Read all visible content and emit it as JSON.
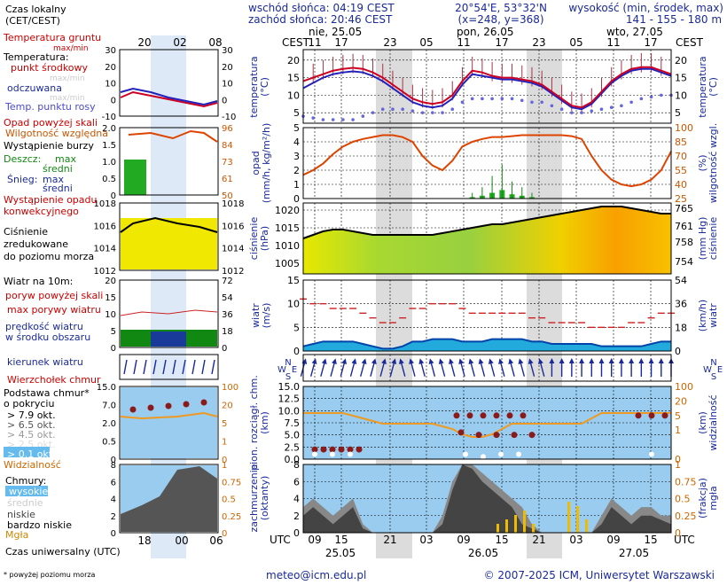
{
  "header": {
    "sunrise": "wschód słońca: 04:19 CEST",
    "sunset": "zachód słońca: 20:46 CEST",
    "coords": "20°54'E, 53°32'N",
    "grid": "(x=248, y=368)",
    "elev_label": "wysokość (min, środek, max)",
    "elev_values": "141 - 155 - 180 m"
  },
  "legend": {
    "timezone": "Czas lokalny\n(CET/CEST)",
    "local_ticks": [
      "20",
      "02",
      "08"
    ],
    "utc_ticks": [
      "18",
      "00",
      "06"
    ],
    "utc_label": "Czas uniwersalny (UTC)",
    "footnote": "* powyżej poziomu morza",
    "temp_ground": "Temperatura gruntu",
    "temp_ground_sub": "max/min",
    "temp_title": "Temperatura:",
    "temp_mid": "punkt środkowy",
    "temp_range": "max/min",
    "temp_felt": "odczuwana",
    "temp_felt_range": "max/min",
    "temp_dew": "Temp. punktu rosy",
    "precip_above": "Opad powyżej skali",
    "humidity": "Wilgotność względna",
    "storm": "Wystąpienie burzy",
    "rain": "Deszcz:",
    "rain_max": "max",
    "rain_mean": "średni",
    "snow": "Śnieg:",
    "snow_max": "max",
    "snow_mean": "średni",
    "conv": "Wystąpienie opadu\nkonwekcyjnego",
    "pressure": "Ciśnienie\nzredukowane\ndo poziomu morza",
    "wind_title": "Wiatr na 10m:",
    "gust_above": "poryw powyżej skali",
    "gust_max": "max porywy wiatru",
    "wind_speed": "prędkość wiatru\nw środku obszaru",
    "wind_dir": "kierunek wiatru",
    "cloud_top": "Wierzchołek chmur",
    "cloud_base": "Podstawa chmur*\no pokryciu",
    "okt": [
      "> 7.9 okt.",
      "> 6.5 okt.",
      "> 4.5 okt.",
      "> 2.5 okt.",
      "> 0.1 okt."
    ],
    "visibility": "Widzialność",
    "clouds": "Chmury:",
    "cl_high": "wysokie",
    "cl_mid": "średnie",
    "cl_low": "niskie",
    "cl_vlow": "bardzo niskie",
    "fog": "Mgła"
  },
  "axes": {
    "cest": "CEST",
    "utc": "UTC",
    "day_labels": [
      "nie, 25.05",
      "pon, 26.05",
      "wto, 27.05"
    ],
    "bottom_dates": [
      "25.05",
      "26.05",
      "27.05"
    ],
    "top_hours": [
      "11",
      "17",
      "23",
      "05",
      "11",
      "17",
      "23",
      "05",
      "11",
      "17"
    ],
    "bottom_hours": [
      "09",
      "15",
      "21",
      "03",
      "09",
      "15",
      "21",
      "03",
      "09",
      "15"
    ],
    "temp_left": "temperatura\n(°C)",
    "temp_right": "temperatura\n(°C)",
    "precip_left": "opad\n(mm/h, kg/m²/h)",
    "precip_right": "(%)\nwilgotność wzgl.",
    "press_left": "ciśnienie\n(hPa)",
    "press_right": "(mm Hg)\nciśnienie",
    "wind_left": "wiatr\n(m/s)",
    "wind_right": "(km/h)\nwiatr",
    "cloud_left": "pion. rozciągł. chm.\n(km)",
    "cloud_right": "(km)\nwidzialność",
    "fog_left": "zachmurzenie\n(oktanty)",
    "fog_right": "(frakcja)\nmgła",
    "compass": [
      "N",
      "W",
      "E",
      "S"
    ],
    "temp_ticks_l": [
      "20",
      "15",
      "10",
      "5"
    ],
    "temp_ticks_r": [
      "20",
      "15",
      "10",
      "5"
    ],
    "precip_ticks_l": [
      "5",
      "4",
      "3",
      "2",
      "1",
      "0"
    ],
    "precip_ticks_r": [
      "100",
      "85",
      "70",
      "55",
      "40",
      "25"
    ],
    "press_ticks_l": [
      "1020",
      "1015",
      "1010",
      "1005"
    ],
    "press_ticks_r": [
      "765",
      "761",
      "758",
      "754"
    ],
    "wind_ticks_l": [
      "15",
      "10",
      "5",
      "0"
    ],
    "wind_ticks_r": [
      "54",
      "36",
      "18",
      "0"
    ],
    "cloud_ticks_l": [
      "15.0",
      "12.5",
      "10.0",
      "7.5",
      "5.0",
      "2.5",
      "0.0"
    ],
    "cloud_ticks_r": [
      "100",
      "20",
      "5",
      "1",
      "0"
    ],
    "fog_ticks_l": [
      "8",
      "6",
      "4",
      "2",
      "0"
    ],
    "fog_ticks_r": [
      "1",
      "0.75",
      "0.5",
      "0.25",
      "0"
    ],
    "leg_temp_l": [
      "30",
      "20",
      "10",
      "0",
      "-10"
    ],
    "leg_temp_r": [
      "30",
      "20",
      "10",
      "0",
      "-10"
    ],
    "leg_prec_l": [
      "2.0",
      "1.5",
      "1.0",
      "0.5",
      "0"
    ],
    "leg_prec_r": [
      "96",
      "84",
      "73",
      "61",
      "50"
    ],
    "leg_press_l": [
      "1018",
      "1016",
      "1014",
      "1012"
    ],
    "leg_press_r": [
      "1018",
      "1016",
      "1014",
      "1012"
    ],
    "leg_wind_l": [
      "20",
      "15",
      "10",
      "5",
      "0"
    ],
    "leg_wind_r": [
      "72",
      "54",
      "36",
      "18",
      "0"
    ],
    "leg_cloud_l": [
      "15.0",
      "7.0",
      "2.0",
      "0.5",
      "0"
    ],
    "leg_cloud_r": [
      "100",
      "20",
      "5",
      "1",
      "0"
    ],
    "leg_fog_l": [
      "8",
      "6",
      "4",
      "2",
      "0"
    ],
    "leg_fog_r": [
      "1",
      "0.75",
      "0.5",
      "0.25",
      "0"
    ]
  },
  "footer": {
    "email": "meteo@icm.edu.pl",
    "copyright": "© 2007-2025 ICM, Uniwersytet Warszawski"
  },
  "colors": {
    "temp": "#cc0022",
    "felt": "#2222bb",
    "dew": "#6666dd",
    "humidity": "#dd4400",
    "rain": "#22aa22",
    "press_fill": "#e8e800",
    "wind_fill": "#22aadd",
    "wind_dark": "#0044aa",
    "gust": "#cc2222",
    "sky": "#99ccee",
    "visibility": "#ee9922",
    "night": "#dcdcdc",
    "fog": "#eebb00"
  },
  "chart_data": {
    "type": "line",
    "hours_utc_from": "2025-05-25 06:00",
    "temperature_c": [
      14,
      15,
      16,
      17,
      17.5,
      17.8,
      17.5,
      16.5,
      15,
      13,
      11,
      9,
      8,
      7.5,
      8,
      10,
      14,
      17,
      16.5,
      15.5,
      15,
      15,
      14.5,
      14,
      13,
      11,
      9,
      7,
      6.5,
      8,
      11,
      14,
      16,
      17.5,
      18,
      18,
      17,
      16
    ],
    "felt_c": [
      12,
      13.5,
      15,
      16,
      16.5,
      16.8,
      16.5,
      15.5,
      14,
      12,
      10,
      8,
      7,
      6.5,
      7,
      9,
      13,
      16,
      15.5,
      15,
      14.5,
      14.5,
      14,
      13.5,
      12.5,
      10.5,
      8.5,
      6.5,
      6,
      7.5,
      10.5,
      13.5,
      15.5,
      17,
      17.5,
      17.5,
      16.5,
      15.5
    ],
    "dew_c": [
      4,
      3.5,
      3,
      3,
      3,
      3,
      4,
      5,
      6,
      6,
      6,
      5.5,
      5,
      5,
      5,
      6,
      8,
      9,
      9,
      9,
      9,
      9,
      8.5,
      8,
      8,
      7,
      6,
      5,
      5,
      5.5,
      6,
      6.5,
      7,
      8,
      9,
      9.5,
      10,
      10
    ],
    "humidity_pct": [
      50,
      55,
      62,
      72,
      80,
      85,
      88,
      90,
      92,
      92,
      90,
      85,
      70,
      60,
      55,
      65,
      80,
      85,
      88,
      90,
      90,
      91,
      92,
      92,
      92,
      92,
      92,
      91,
      88,
      70,
      55,
      45,
      40,
      38,
      40,
      45,
      55,
      75
    ],
    "precip_mm_h": [
      0,
      0,
      0,
      0,
      0,
      0,
      0,
      0,
      0,
      0,
      0,
      0,
      0,
      0,
      0,
      0,
      0,
      0.1,
      0.2,
      0.4,
      0.6,
      0.3,
      0.2,
      0.1,
      0,
      0,
      0,
      0,
      0,
      0,
      0,
      0,
      0,
      0,
      0,
      0,
      0,
      0
    ],
    "pressure_hpa": [
      1012,
      1013,
      1014,
      1014.5,
      1014.5,
      1014,
      1013.5,
      1013,
      1013,
      1013,
      1013,
      1013,
      1013,
      1013,
      1013.5,
      1014,
      1014.5,
      1015,
      1015.5,
      1016,
      1016,
      1016.5,
      1017,
      1017.5,
      1018,
      1018.5,
      1019,
      1019.5,
      1020,
      1020.5,
      1021,
      1021,
      1021,
      1020.5,
      1020,
      1019.5,
      1019,
      1019
    ],
    "wind_ms": [
      1,
      1.5,
      2,
      2,
      2,
      2,
      1.5,
      1,
      0.5,
      0.5,
      1,
      2,
      2,
      2.5,
      2.5,
      2.5,
      2,
      2,
      2,
      2.5,
      2.5,
      2.5,
      2.5,
      2,
      2,
      1.5,
      1.5,
      1.5,
      1.5,
      1.5,
      1,
      1,
      1,
      1,
      1,
      1.5,
      2,
      2
    ],
    "gust_ms": [
      11,
      10,
      10,
      9,
      9,
      9,
      8,
      7,
      6,
      6,
      7,
      9,
      9,
      10,
      10,
      10,
      9,
      8,
      8,
      8,
      8,
      8,
      8,
      7,
      7,
      6,
      6,
      6,
      6,
      5,
      5,
      5,
      5,
      6,
      6,
      7,
      8,
      8
    ],
    "visibility_km": [
      60,
      60,
      60,
      60,
      60,
      55,
      50,
      45,
      40,
      40,
      40,
      40,
      40,
      40,
      35,
      30,
      20,
      15,
      15,
      20,
      30,
      40,
      40,
      40,
      40,
      40,
      40,
      40,
      40,
      50,
      60,
      60,
      60,
      60,
      60,
      60,
      60,
      60
    ]
  }
}
